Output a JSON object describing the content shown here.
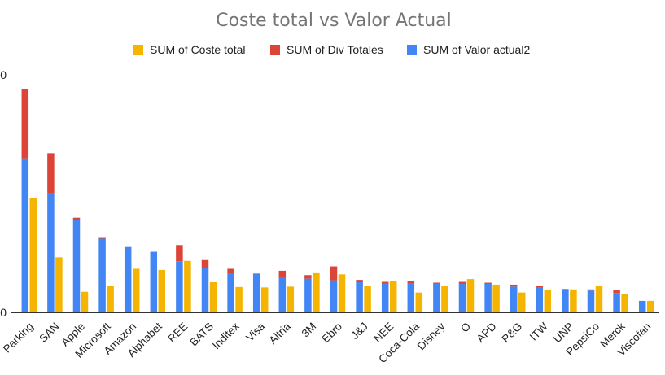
{
  "chart_data": {
    "type": "bar",
    "title": "Coste total vs Valor Actual",
    "categories": [
      "Parking",
      "SAN",
      "Apple",
      "Microsoft",
      "Amazon",
      "Alphabet",
      "REE",
      "BATS",
      "Inditex",
      "Visa",
      "Altria",
      "3M",
      "Ebro",
      "J&J",
      "NEE",
      "Coca-Cola",
      "Disney",
      "O",
      "APD",
      "P&G",
      "ITW",
      "UNP",
      "PepsiCo",
      "Merck",
      "Viscofan"
    ],
    "stack_series": [
      {
        "name": "SUM of Valor actual2",
        "color": "#4285f4",
        "values": [
          19450,
          15100,
          11650,
          9300,
          8250,
          7650,
          6450,
          5550,
          5000,
          4900,
          4450,
          4250,
          4050,
          3800,
          3650,
          3700,
          3600,
          3600,
          3600,
          3250,
          3100,
          2800,
          2750,
          2450,
          1450
        ]
      },
      {
        "name": "SUM of Div Totales",
        "color": "#db4437",
        "values": [
          8700,
          5000,
          300,
          200,
          0,
          0,
          2050,
          1050,
          500,
          0,
          800,
          450,
          1750,
          300,
          200,
          300,
          150,
          250,
          150,
          250,
          200,
          150,
          150,
          350,
          0
        ]
      }
    ],
    "side_series": {
      "name": "SUM of Coste total",
      "color": "#f4b400",
      "values": [
        14400,
        6950,
        2600,
        3300,
        5500,
        5350,
        6500,
        3800,
        3200,
        3150,
        3250,
        5050,
        4800,
        3350,
        3900,
        2500,
        3300,
        4200,
        3500,
        2500,
        2850,
        2900,
        3300,
        2300,
        1450
      ]
    },
    "legend_order": [
      "SUM of Coste total",
      "SUM of Div Totales",
      "SUM of Valor actual2"
    ],
    "legend_position": "top",
    "ylim": [
      0,
      30000
    ],
    "yticks": [
      "0",
      "",
      "",
      "0"
    ],
    "grid": false
  }
}
